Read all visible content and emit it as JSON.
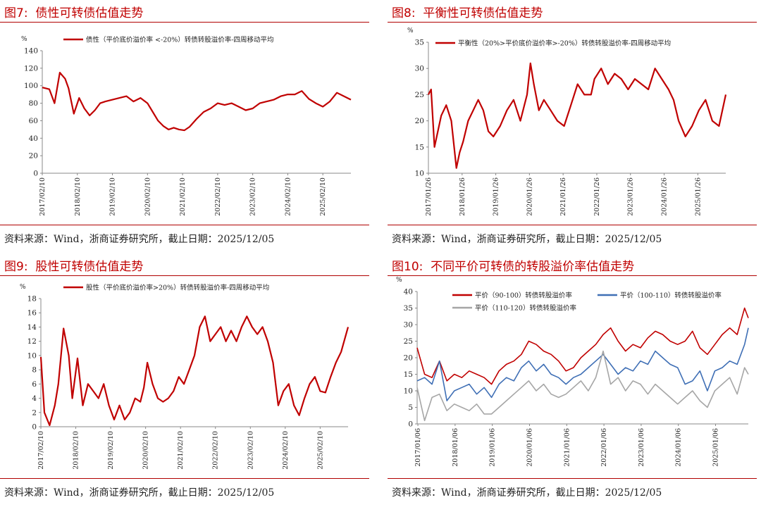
{
  "source_note": "资料来源：Wind，浙商证券研究所，截止日期：2025/12/05",
  "colors": {
    "red": "#c00000",
    "blue": "#3f6fb5",
    "gray": "#a6a6a6",
    "rule": "#b00000"
  },
  "charts": [
    {
      "figure": "图7:",
      "title": "债性可转债估值走势",
      "chart_data": {
        "type": "line",
        "unit_label": "%",
        "ylim": [
          0,
          140
        ],
        "yticks": [
          0,
          20,
          40,
          60,
          80,
          100,
          120,
          140
        ],
        "x_start": 2017.1,
        "x_end": 2025.9,
        "xtick_labels": [
          "2017/02/10",
          "2018/02/10",
          "2019/02/10",
          "2020/02/10",
          "2021/02/10",
          "2022/02/10",
          "2023/02/10",
          "2024/02/10",
          "2025/02/10"
        ],
        "series": [
          {
            "name": "债性（平价底价溢价率 <-20%）转债转股溢价率-四周移动平均",
            "color": "#c00000",
            "x": [
              2017.1,
              2017.3,
              2017.45,
              2017.6,
              2017.75,
              2017.85,
              2018.0,
              2018.15,
              2018.3,
              2018.45,
              2018.6,
              2018.75,
              2018.9,
              2019.1,
              2019.3,
              2019.5,
              2019.7,
              2019.9,
              2020.1,
              2020.25,
              2020.4,
              2020.55,
              2020.7,
              2020.85,
              2021.0,
              2021.15,
              2021.3,
              2021.5,
              2021.7,
              2021.9,
              2022.1,
              2022.3,
              2022.5,
              2022.7,
              2022.9,
              2023.1,
              2023.3,
              2023.5,
              2023.7,
              2023.9,
              2024.1,
              2024.3,
              2024.5,
              2024.7,
              2024.9,
              2025.1,
              2025.3,
              2025.5,
              2025.7,
              2025.9
            ],
            "y": [
              98,
              96,
              80,
              115,
              108,
              97,
              68,
              86,
              74,
              66,
              72,
              80,
              82,
              84,
              86,
              88,
              82,
              86,
              80,
              70,
              60,
              54,
              50,
              52,
              50,
              49,
              53,
              62,
              70,
              74,
              80,
              78,
              80,
              76,
              72,
              74,
              80,
              82,
              84,
              88,
              90,
              90,
              94,
              85,
              80,
              76,
              82,
              92,
              88,
              84
            ]
          }
        ]
      }
    },
    {
      "figure": "图8:",
      "title": "平衡性可转债估值走势",
      "chart_data": {
        "type": "line",
        "unit_label": "%",
        "ylim": [
          10,
          35
        ],
        "yticks": [
          10,
          15,
          20,
          25,
          30,
          35
        ],
        "x_start": 2017.07,
        "x_end": 2025.9,
        "xtick_labels": [
          "2017/01/26",
          "2018/01/26",
          "2019/01/26",
          "2020/01/26",
          "2021/01/26",
          "2022/01/26",
          "2023/01/26",
          "2024/01/26",
          "2025/01/26"
        ],
        "series": [
          {
            "name": "平衡性（20%>平价底价溢价率>-20%）转债转股溢价率-四周移动平均",
            "color": "#c00000",
            "x": [
              2017.07,
              2017.15,
              2017.25,
              2017.35,
              2017.45,
              2017.6,
              2017.75,
              2017.9,
              2018.0,
              2018.1,
              2018.25,
              2018.4,
              2018.55,
              2018.7,
              2018.85,
              2019.0,
              2019.2,
              2019.4,
              2019.6,
              2019.8,
              2020.0,
              2020.1,
              2020.2,
              2020.35,
              2020.5,
              2020.7,
              2020.9,
              2021.1,
              2021.3,
              2021.5,
              2021.7,
              2021.9,
              2022.0,
              2022.2,
              2022.4,
              2022.6,
              2022.8,
              2023.0,
              2023.2,
              2023.4,
              2023.6,
              2023.8,
              2024.0,
              2024.2,
              2024.35,
              2024.5,
              2024.7,
              2024.9,
              2025.1,
              2025.3,
              2025.5,
              2025.7,
              2025.9
            ],
            "y": [
              25,
              26,
              15,
              18,
              21,
              23,
              20,
              11,
              14,
              16,
              20,
              22,
              24,
              22,
              18,
              17,
              19,
              22,
              24,
              20,
              25,
              31,
              27,
              22,
              24,
              22,
              20,
              19,
              23,
              27,
              25,
              25,
              28,
              30,
              27,
              29,
              28,
              26,
              28,
              27,
              26,
              30,
              28,
              26,
              24,
              20,
              17,
              19,
              22,
              24,
              20,
              19,
              25
            ]
          }
        ]
      }
    },
    {
      "figure": "图9:",
      "title": "股性可转债估值走势",
      "chart_data": {
        "type": "line",
        "unit_label": "%",
        "ylim": [
          0,
          18
        ],
        "yticks": [
          0,
          2,
          4,
          6,
          8,
          10,
          12,
          14,
          16,
          18
        ],
        "x_start": 2017.1,
        "x_end": 2025.9,
        "xtick_labels": [
          "2017/02/10",
          "2018/02/10",
          "2019/02/10",
          "2020/02/10",
          "2021/02/10",
          "2022/02/10",
          "2023/02/10",
          "2024/02/10",
          "2025/02/10"
        ],
        "series": [
          {
            "name": "股性（平价底价溢价率>20%）转债转股溢价率-四周移动平均",
            "color": "#c00000",
            "x": [
              2017.1,
              2017.2,
              2017.35,
              2017.5,
              2017.6,
              2017.75,
              2017.9,
              2018.0,
              2018.15,
              2018.3,
              2018.45,
              2018.6,
              2018.75,
              2018.9,
              2019.05,
              2019.2,
              2019.35,
              2019.5,
              2019.65,
              2019.8,
              2019.95,
              2020.05,
              2020.15,
              2020.3,
              2020.45,
              2020.6,
              2020.75,
              2020.9,
              2021.05,
              2021.2,
              2021.35,
              2021.5,
              2021.65,
              2021.8,
              2021.95,
              2022.1,
              2022.25,
              2022.4,
              2022.55,
              2022.7,
              2022.85,
              2023.0,
              2023.15,
              2023.3,
              2023.45,
              2023.6,
              2023.75,
              2023.9,
              2024.05,
              2024.2,
              2024.35,
              2024.5,
              2024.65,
              2024.8,
              2024.95,
              2025.1,
              2025.25,
              2025.4,
              2025.55,
              2025.7,
              2025.9
            ],
            "y": [
              9.8,
              2,
              0.2,
              3,
              6,
              13.8,
              10,
              4,
              9.6,
              3,
              6,
              5,
              4,
              6,
              3,
              1,
              3,
              1,
              2,
              4,
              3.5,
              5.5,
              9,
              6,
              4,
              3.5,
              4,
              5,
              7,
              6,
              8,
              10,
              14,
              15.5,
              12,
              13,
              14,
              12,
              13.5,
              12,
              14,
              15.5,
              14,
              13,
              14,
              12,
              9,
              3,
              5,
              6,
              3,
              1.6,
              4,
              6,
              7,
              5,
              4.8,
              7,
              9,
              10.5,
              14
            ]
          }
        ]
      }
    },
    {
      "figure": "图10:",
      "title": "不同平价可转债的转股溢价率估值走势",
      "chart_data": {
        "type": "line",
        "unit_label": "%",
        "ylim": [
          0,
          40
        ],
        "yticks": [
          0,
          5,
          10,
          15,
          20,
          25,
          30,
          35,
          40
        ],
        "x_start": 2017.0,
        "x_end": 2025.9,
        "xtick_labels": [
          "2017/01/06",
          "2018/01/06",
          "2019/01/06",
          "2020/01/06",
          "2021/01/06",
          "2022/01/06",
          "2023/01/06",
          "2024/01/06",
          "2025/01/06"
        ],
        "series": [
          {
            "name": "平价（90-100）转债转股溢价率",
            "color": "#c00000",
            "x": [
              2017.0,
              2017.2,
              2017.4,
              2017.6,
              2017.8,
              2018.0,
              2018.2,
              2018.4,
              2018.6,
              2018.8,
              2019.0,
              2019.2,
              2019.4,
              2019.6,
              2019.8,
              2020.0,
              2020.2,
              2020.4,
              2020.6,
              2020.8,
              2021.0,
              2021.2,
              2021.4,
              2021.6,
              2021.8,
              2022.0,
              2022.2,
              2022.4,
              2022.6,
              2022.8,
              2023.0,
              2023.2,
              2023.4,
              2023.6,
              2023.8,
              2024.0,
              2024.2,
              2024.4,
              2024.6,
              2024.8,
              2025.0,
              2025.2,
              2025.4,
              2025.6,
              2025.8,
              2025.9
            ],
            "y": [
              23,
              15,
              14,
              19,
              13,
              15,
              14,
              16,
              15,
              14,
              12,
              16,
              18,
              19,
              21,
              25,
              24,
              22,
              21,
              19,
              16,
              17,
              20,
              22,
              24,
              27,
              29,
              25,
              22,
              24,
              23,
              26,
              28,
              27,
              25,
              24,
              25,
              28,
              23,
              21,
              24,
              27,
              29,
              27,
              35,
              32
            ]
          },
          {
            "name": "平价（100-110）转债转股溢价率",
            "color": "#3f6fb5",
            "x": [
              2017.0,
              2017.2,
              2017.4,
              2017.6,
              2017.8,
              2018.0,
              2018.2,
              2018.4,
              2018.6,
              2018.8,
              2019.0,
              2019.2,
              2019.4,
              2019.6,
              2019.8,
              2020.0,
              2020.2,
              2020.4,
              2020.6,
              2020.8,
              2021.0,
              2021.2,
              2021.4,
              2021.6,
              2021.8,
              2022.0,
              2022.2,
              2022.4,
              2022.6,
              2022.8,
              2023.0,
              2023.2,
              2023.4,
              2023.6,
              2023.8,
              2024.0,
              2024.2,
              2024.4,
              2024.6,
              2024.8,
              2025.0,
              2025.2,
              2025.4,
              2025.6,
              2025.8,
              2025.9
            ],
            "y": [
              13,
              14,
              12,
              19,
              7,
              10,
              11,
              12,
              9,
              11,
              8,
              12,
              14,
              13,
              17,
              19,
              16,
              18,
              15,
              14,
              12,
              14,
              15,
              17,
              19,
              21,
              18,
              15,
              17,
              16,
              19,
              18,
              22,
              20,
              18,
              17,
              12,
              13,
              16,
              10,
              16,
              17,
              19,
              18,
              24,
              29
            ]
          },
          {
            "name": "平价（110-120）转债转股溢价率",
            "color": "#a6a6a6",
            "x": [
              2017.0,
              2017.2,
              2017.4,
              2017.6,
              2017.8,
              2018.0,
              2018.2,
              2018.4,
              2018.6,
              2018.8,
              2019.0,
              2019.2,
              2019.4,
              2019.6,
              2019.8,
              2020.0,
              2020.2,
              2020.4,
              2020.6,
              2020.8,
              2021.0,
              2021.2,
              2021.4,
              2021.6,
              2021.8,
              2022.0,
              2022.2,
              2022.4,
              2022.6,
              2022.8,
              2023.0,
              2023.2,
              2023.4,
              2023.6,
              2023.8,
              2024.0,
              2024.2,
              2024.4,
              2024.6,
              2024.8,
              2025.0,
              2025.2,
              2025.4,
              2025.6,
              2025.8,
              2025.9
            ],
            "y": [
              11,
              1,
              8,
              9,
              4,
              6,
              5,
              4,
              6,
              3,
              3,
              5,
              7,
              9,
              11,
              13,
              10,
              12,
              9,
              8,
              9,
              11,
              13,
              10,
              14,
              22,
              12,
              14,
              10,
              13,
              12,
              9,
              12,
              10,
              8,
              6,
              8,
              10,
              7,
              5,
              10,
              12,
              14,
              9,
              17,
              15
            ]
          }
        ]
      }
    }
  ]
}
